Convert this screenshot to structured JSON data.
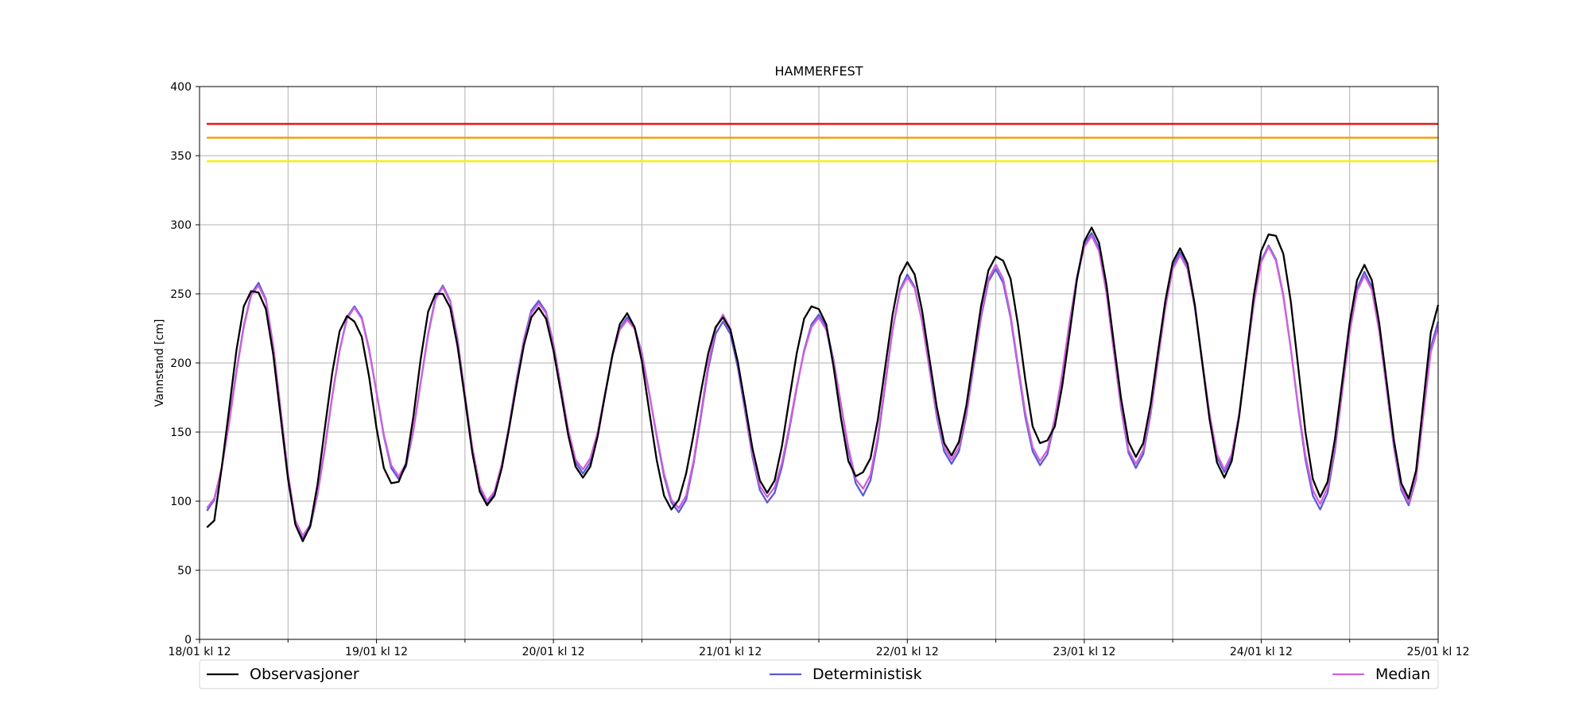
{
  "chart_data": {
    "type": "line",
    "title": "HAMMERFEST",
    "ylabel": "Vannstand [cm]",
    "xlim": [
      0,
      168
    ],
    "ylim": [
      0,
      400
    ],
    "xticks": [
      {
        "value": 0,
        "label": "18/01 kl 12"
      },
      {
        "value": 24,
        "label": "19/01 kl 12"
      },
      {
        "value": 48,
        "label": "20/01 kl 12"
      },
      {
        "value": 72,
        "label": "21/01 kl 12"
      },
      {
        "value": 96,
        "label": "22/01 kl 12"
      },
      {
        "value": 120,
        "label": "23/01 kl 12"
      },
      {
        "value": 144,
        "label": "24/01 kl 12"
      },
      {
        "value": 168,
        "label": "25/01 kl 12"
      }
    ],
    "xminorticks": [
      12,
      36,
      60,
      84,
      108,
      132,
      156
    ],
    "yticks": [
      0,
      50,
      100,
      150,
      200,
      250,
      300,
      350,
      400
    ],
    "grid": true,
    "thresholds": [
      {
        "value": 373,
        "color": "#e8141c"
      },
      {
        "value": 363,
        "color": "#f5a000"
      },
      {
        "value": 346,
        "color": "#f5f000"
      }
    ],
    "x": [
      1,
      2,
      3,
      4,
      5,
      6,
      7,
      8,
      9,
      10,
      11,
      12,
      13,
      14,
      15,
      16,
      17,
      18,
      19,
      20,
      21,
      22,
      23,
      24,
      25,
      26,
      27,
      28,
      29,
      30,
      31,
      32,
      33,
      34,
      35,
      36,
      37,
      38,
      39,
      40,
      41,
      42,
      43,
      44,
      45,
      46,
      47,
      48,
      49,
      50,
      51,
      52,
      53,
      54,
      55,
      56,
      57,
      58,
      59,
      60,
      61,
      62,
      63,
      64,
      65,
      66,
      67,
      68,
      69,
      70,
      71,
      72,
      73,
      74,
      75,
      76,
      77,
      78,
      79,
      80,
      81,
      82,
      83,
      84,
      85,
      86,
      87,
      88,
      89,
      90,
      91,
      92,
      93,
      94,
      95,
      96,
      97,
      98,
      99,
      100,
      101,
      102,
      103,
      104,
      105,
      106,
      107,
      108,
      109,
      110,
      111,
      112,
      113,
      114,
      115,
      116,
      117,
      118,
      119,
      120,
      121,
      122,
      123,
      124,
      125,
      126,
      127,
      128,
      129,
      130,
      131,
      132,
      133,
      134,
      135,
      136,
      137,
      138,
      139,
      140,
      141,
      142,
      143,
      144,
      145,
      146,
      147,
      148,
      149,
      150,
      151,
      152,
      153,
      154,
      155,
      156,
      157,
      158,
      159,
      160,
      161,
      162,
      163,
      164,
      165,
      166,
      167,
      168
    ],
    "series": [
      {
        "name": "Observasjoner",
        "color": "#000000",
        "values": [
          81,
          86,
          124,
          166,
          209,
          241,
          252,
          251,
          239,
          206,
          161,
          116,
          83,
          71,
          82,
          112,
          153,
          193,
          223,
          234,
          230,
          219,
          190,
          153,
          124,
          113,
          114,
          127,
          161,
          203,
          237,
          250,
          250,
          240,
          212,
          174,
          135,
          107,
          97,
          104,
          124,
          153,
          184,
          213,
          233,
          240,
          232,
          209,
          179,
          148,
          125,
          117,
          125,
          147,
          177,
          206,
          228,
          236,
          226,
          201,
          165,
          130,
          104,
          94,
          101,
          120,
          148,
          179,
          207,
          226,
          233,
          224,
          201,
          170,
          138,
          115,
          106,
          115,
          140,
          174,
          207,
          232,
          241,
          239,
          228,
          197,
          160,
          129,
          118,
          121,
          131,
          159,
          197,
          235,
          263,
          273,
          264,
          238,
          203,
          168,
          142,
          133,
          143,
          169,
          205,
          241,
          267,
          277,
          274,
          261,
          228,
          188,
          154,
          142,
          144,
          154,
          183,
          221,
          260,
          288,
          298,
          287,
          257,
          215,
          174,
          143,
          132,
          142,
          170,
          208,
          245,
          273,
          283,
          272,
          242,
          200,
          159,
          128,
          117,
          129,
          161,
          205,
          249,
          281,
          293,
          292,
          279,
          245,
          198,
          150,
          116,
          103,
          114,
          145,
          187,
          229,
          260,
          271,
          260,
          229,
          187,
          144,
          113,
          102,
          122,
          172,
          222,
          242
        ]
      },
      {
        "name": "Deterministisk",
        "color": "#5a5ad6",
        "values": [
          93,
          101,
          124,
          157,
          194,
          227,
          250,
          258,
          246,
          212,
          166,
          119,
          85,
          73,
          81,
          105,
          138,
          176,
          209,
          233,
          241,
          233,
          210,
          179,
          147,
          124,
          116,
          125,
          151,
          186,
          221,
          247,
          256,
          245,
          217,
          177,
          138,
          109,
          98,
          105,
          126,
          155,
          188,
          217,
          238,
          245,
          237,
          214,
          183,
          151,
          128,
          120,
          128,
          148,
          177,
          205,
          225,
          233,
          226,
          207,
          178,
          147,
          118,
          99,
          92,
          101,
          127,
          161,
          196,
          221,
          230,
          221,
          197,
          165,
          132,
          108,
          99,
          106,
          125,
          152,
          182,
          209,
          228,
          235,
          226,
          202,
          170,
          137,
          113,
          104,
          115,
          144,
          184,
          224,
          253,
          264,
          255,
          230,
          196,
          161,
          136,
          127,
          136,
          162,
          198,
          233,
          259,
          268,
          258,
          233,
          197,
          161,
          136,
          126,
          134,
          158,
          191,
          229,
          262,
          286,
          294,
          283,
          252,
          209,
          167,
          135,
          124,
          134,
          163,
          202,
          241,
          270,
          280,
          269,
          240,
          201,
          161,
          132,
          121,
          132,
          162,
          203,
          244,
          274,
          285,
          275,
          249,
          211,
          168,
          130,
          104,
          94,
          106,
          137,
          180,
          223,
          254,
          266,
          255,
          224,
          182,
          139,
          108,
          97,
          116,
          164,
          211,
          230
        ]
      },
      {
        "name": "Median",
        "color": "#d060dc",
        "values": [
          95,
          102,
          124,
          156,
          193,
          226,
          249,
          256,
          245,
          212,
          166,
          120,
          86,
          75,
          83,
          106,
          139,
          176,
          209,
          232,
          240,
          232,
          209,
          179,
          148,
          126,
          118,
          127,
          152,
          186,
          220,
          246,
          255,
          244,
          216,
          177,
          139,
          111,
          100,
          107,
          127,
          155,
          187,
          216,
          236,
          243,
          236,
          213,
          183,
          152,
          130,
          123,
          131,
          150,
          178,
          205,
          224,
          231,
          225,
          206,
          178,
          148,
          120,
          101,
          95,
          104,
          129,
          163,
          199,
          225,
          235,
          225,
          200,
          167,
          134,
          111,
          103,
          110,
          128,
          154,
          183,
          208,
          226,
          233,
          224,
          201,
          170,
          139,
          116,
          109,
          119,
          147,
          186,
          224,
          252,
          262,
          254,
          230,
          197,
          163,
          139,
          130,
          139,
          164,
          200,
          235,
          261,
          271,
          261,
          235,
          199,
          164,
          139,
          129,
          137,
          160,
          192,
          229,
          261,
          284,
          292,
          281,
          251,
          209,
          168,
          137,
          127,
          137,
          165,
          203,
          240,
          268,
          278,
          268,
          240,
          202,
          163,
          134,
          123,
          134,
          163,
          203,
          243,
          273,
          284,
          274,
          248,
          211,
          169,
          133,
          108,
          98,
          110,
          140,
          181,
          222,
          252,
          263,
          253,
          223,
          182,
          140,
          110,
          99,
          117,
          163,
          208,
          226
        ]
      }
    ],
    "draw_order": [
      1,
      2,
      0
    ]
  }
}
